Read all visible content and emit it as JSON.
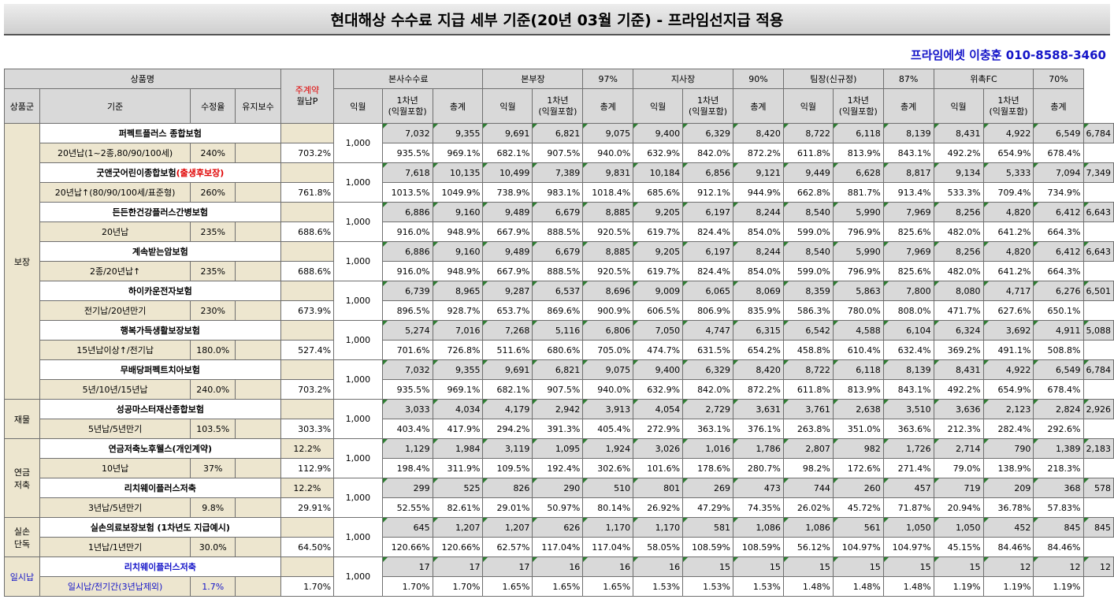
{
  "title": "현대해상 수수료 지급 세부 기준(20년 03월 기준) - 프라임선지급 적용",
  "contact": "프라임에셋 이충훈 010-8588-3460",
  "header": {
    "product": "상품명",
    "payment_top": "주계약",
    "payment_bottom": "월납P",
    "group": "상품군",
    "basis": "기준",
    "correction": "수정율",
    "maintenance": "유지보수",
    "tiers": [
      {
        "name": "본사수수료",
        "pct": ""
      },
      {
        "name": "본부장",
        "pct": "97%"
      },
      {
        "name": "지사장",
        "pct": "90%"
      },
      {
        "name": "팀장(신규정)",
        "pct": "87%"
      },
      {
        "name": "위촉FC",
        "pct": "70%"
      }
    ],
    "sub1": "익월",
    "sub2_a": "1차년",
    "sub2_b": "(익월포함)",
    "sub3": "총계"
  },
  "groups": [
    {
      "name": "보장",
      "blue": false,
      "products": [
        {
          "name": "퍼펙트플러스 종합보험",
          "name_suffix": "",
          "basis": "20년납(1~2종,80/90/100세)",
          "rate": "240%",
          "maint": "",
          "pay": "1,000",
          "amounts": [
            "7,032",
            "9,355",
            "9,691",
            "6,821",
            "9,075",
            "9,400",
            "6,329",
            "8,420",
            "8,722",
            "6,118",
            "8,139",
            "8,431",
            "4,922",
            "6,549",
            "6,784"
          ],
          "pcts": [
            "703.2%",
            "935.5%",
            "969.1%",
            "682.1%",
            "907.5%",
            "940.0%",
            "632.9%",
            "842.0%",
            "872.2%",
            "611.8%",
            "813.9%",
            "843.1%",
            "492.2%",
            "654.9%",
            "678.4%"
          ]
        },
        {
          "name": "굿앤굿어린이종합보험",
          "name_suffix": "(출생후보장)",
          "basis": "20년납↑(80/90/100세/표준형)",
          "rate": "260%",
          "maint": "",
          "pay": "1,000",
          "amounts": [
            "7,618",
            "10,135",
            "10,499",
            "7,389",
            "9,831",
            "10,184",
            "6,856",
            "9,121",
            "9,449",
            "6,628",
            "8,817",
            "9,134",
            "5,333",
            "7,094",
            "7,349"
          ],
          "pcts": [
            "761.8%",
            "1013.5%",
            "1049.9%",
            "738.9%",
            "983.1%",
            "1018.4%",
            "685.6%",
            "912.1%",
            "944.9%",
            "662.8%",
            "881.7%",
            "913.4%",
            "533.3%",
            "709.4%",
            "734.9%"
          ]
        },
        {
          "name": "든든한건강플러스간병보험",
          "name_suffix": "",
          "basis": "20년납",
          "rate": "235%",
          "maint": "",
          "pay": "1,000",
          "amounts": [
            "6,886",
            "9,160",
            "9,489",
            "6,679",
            "8,885",
            "9,205",
            "6,197",
            "8,244",
            "8,540",
            "5,990",
            "7,969",
            "8,256",
            "4,820",
            "6,412",
            "6,643"
          ],
          "pcts": [
            "688.6%",
            "916.0%",
            "948.9%",
            "667.9%",
            "888.5%",
            "920.5%",
            "619.7%",
            "824.4%",
            "854.0%",
            "599.0%",
            "796.9%",
            "825.6%",
            "482.0%",
            "641.2%",
            "664.3%"
          ]
        },
        {
          "name": "계속받는암보험",
          "name_suffix": "",
          "basis": "2종/20년납↑",
          "rate": "235%",
          "maint": "",
          "pay": "1,000",
          "amounts": [
            "6,886",
            "9,160",
            "9,489",
            "6,679",
            "8,885",
            "9,205",
            "6,197",
            "8,244",
            "8,540",
            "5,990",
            "7,969",
            "8,256",
            "4,820",
            "6,412",
            "6,643"
          ],
          "pcts": [
            "688.6%",
            "916.0%",
            "948.9%",
            "667.9%",
            "888.5%",
            "920.5%",
            "619.7%",
            "824.4%",
            "854.0%",
            "599.0%",
            "796.9%",
            "825.6%",
            "482.0%",
            "641.2%",
            "664.3%"
          ]
        },
        {
          "name": "하이카운전자보험",
          "name_suffix": "",
          "basis": "전기납/20년만기",
          "rate": "230%",
          "maint": "",
          "pay": "1,000",
          "amounts": [
            "6,739",
            "8,965",
            "9,287",
            "6,537",
            "8,696",
            "9,009",
            "6,065",
            "8,069",
            "8,359",
            "5,863",
            "7,800",
            "8,080",
            "4,717",
            "6,276",
            "6,501"
          ],
          "pcts": [
            "673.9%",
            "896.5%",
            "928.7%",
            "653.7%",
            "869.6%",
            "900.9%",
            "606.5%",
            "806.9%",
            "835.9%",
            "586.3%",
            "780.0%",
            "808.0%",
            "471.7%",
            "627.6%",
            "650.1%"
          ]
        },
        {
          "name": "행복가득생활보장보험",
          "name_suffix": "",
          "basis": "15년납이상↑/전기납",
          "rate": "180.0%",
          "maint": "",
          "pay": "1,000",
          "amounts": [
            "5,274",
            "7,016",
            "7,268",
            "5,116",
            "6,806",
            "7,050",
            "4,747",
            "6,315",
            "6,542",
            "4,588",
            "6,104",
            "6,324",
            "3,692",
            "4,911",
            "5,088"
          ],
          "pcts": [
            "527.4%",
            "701.6%",
            "726.8%",
            "511.6%",
            "680.6%",
            "705.0%",
            "474.7%",
            "631.5%",
            "654.2%",
            "458.8%",
            "610.4%",
            "632.4%",
            "369.2%",
            "491.1%",
            "508.8%"
          ]
        },
        {
          "name": "무배당퍼펙트치아보험",
          "name_suffix": "",
          "basis": "5년/10년/15년납",
          "rate": "240.0%",
          "maint": "",
          "pay": "1,000",
          "amounts": [
            "7,032",
            "9,355",
            "9,691",
            "6,821",
            "9,075",
            "9,400",
            "6,329",
            "8,420",
            "8,722",
            "6,118",
            "8,139",
            "8,431",
            "4,922",
            "6,549",
            "6,784"
          ],
          "pcts": [
            "703.2%",
            "935.5%",
            "969.1%",
            "682.1%",
            "907.5%",
            "940.0%",
            "632.9%",
            "842.0%",
            "872.2%",
            "611.8%",
            "813.9%",
            "843.1%",
            "492.2%",
            "654.9%",
            "678.4%"
          ]
        }
      ]
    },
    {
      "name": "재물",
      "blue": false,
      "products": [
        {
          "name": "성공마스터재산종합보험",
          "name_suffix": "",
          "basis": "5년납/5년만기",
          "rate": "103.5%",
          "maint": "",
          "pay": "1,000",
          "amounts": [
            "3,033",
            "4,034",
            "4,179",
            "2,942",
            "3,913",
            "4,054",
            "2,729",
            "3,631",
            "3,761",
            "2,638",
            "3,510",
            "3,636",
            "2,123",
            "2,824",
            "2,926"
          ],
          "pcts": [
            "303.3%",
            "403.4%",
            "417.9%",
            "294.2%",
            "391.3%",
            "405.4%",
            "272.9%",
            "363.1%",
            "376.1%",
            "263.8%",
            "351.0%",
            "363.6%",
            "212.3%",
            "282.4%",
            "292.6%"
          ]
        }
      ]
    },
    {
      "name": "연금\n저축",
      "blue": false,
      "products": [
        {
          "name": "연금저축노후웰스(개인계약)",
          "name_suffix": "",
          "basis": "10년납",
          "rate": "37%",
          "maint": "12.2%",
          "pay": "1,000",
          "amounts": [
            "1,129",
            "1,984",
            "3,119",
            "1,095",
            "1,924",
            "3,026",
            "1,016",
            "1,786",
            "2,807",
            "982",
            "1,726",
            "2,714",
            "790",
            "1,389",
            "2,183"
          ],
          "pcts": [
            "112.9%",
            "198.4%",
            "311.9%",
            "109.5%",
            "192.4%",
            "302.6%",
            "101.6%",
            "178.6%",
            "280.7%",
            "98.2%",
            "172.6%",
            "271.4%",
            "79.0%",
            "138.9%",
            "218.3%"
          ]
        },
        {
          "name": "리치웨이플러스저축",
          "name_suffix": "",
          "basis": "3년납/5년만기",
          "rate": "9.8%",
          "maint": "12.2%",
          "pay": "1,000",
          "amounts": [
            "299",
            "525",
            "826",
            "290",
            "510",
            "801",
            "269",
            "473",
            "744",
            "260",
            "457",
            "719",
            "209",
            "368",
            "578"
          ],
          "pcts": [
            "29.91%",
            "52.55%",
            "82.61%",
            "29.01%",
            "50.97%",
            "80.14%",
            "26.92%",
            "47.29%",
            "74.35%",
            "26.02%",
            "45.72%",
            "71.87%",
            "20.94%",
            "36.78%",
            "57.83%"
          ]
        }
      ]
    },
    {
      "name": "실손\n단독",
      "blue": false,
      "products": [
        {
          "name": "실손의료보장보험 (1차년도 지급예시)",
          "name_suffix": "",
          "basis": "1년납/1년만기",
          "rate": "30.0%",
          "maint": "",
          "pay": "1,000",
          "amounts": [
            "645",
            "1,207",
            "1,207",
            "626",
            "1,170",
            "1,170",
            "581",
            "1,086",
            "1,086",
            "561",
            "1,050",
            "1,050",
            "452",
            "845",
            "845"
          ],
          "pcts": [
            "64.50%",
            "120.66%",
            "120.66%",
            "62.57%",
            "117.04%",
            "117.04%",
            "58.05%",
            "108.59%",
            "108.59%",
            "56.12%",
            "104.97%",
            "104.97%",
            "45.15%",
            "84.46%",
            "84.46%"
          ]
        }
      ]
    },
    {
      "name": "일시납",
      "blue": true,
      "products": [
        {
          "name": "리치웨이플러스저축",
          "name_suffix": "",
          "basis": "일시납/전기간(3년납제외)",
          "rate": "1.7%",
          "maint": "",
          "pay": "1,000",
          "amounts": [
            "17",
            "17",
            "17",
            "16",
            "16",
            "16",
            "15",
            "15",
            "15",
            "15",
            "15",
            "15",
            "12",
            "12",
            "12"
          ],
          "pcts": [
            "1.70%",
            "1.70%",
            "1.70%",
            "1.65%",
            "1.65%",
            "1.65%",
            "1.53%",
            "1.53%",
            "1.53%",
            "1.48%",
            "1.48%",
            "1.48%",
            "1.19%",
            "1.19%",
            "1.19%"
          ]
        }
      ]
    }
  ]
}
